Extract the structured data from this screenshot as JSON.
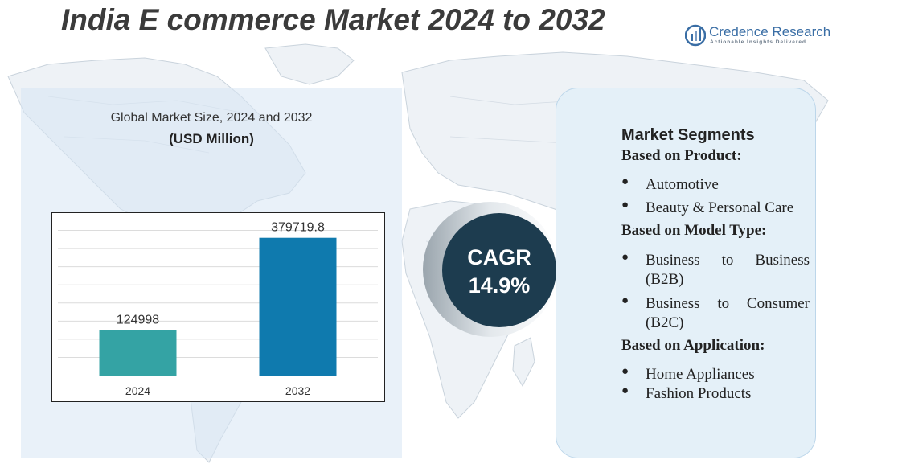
{
  "title": "India E commerce Market 2024 to 2032",
  "logo": {
    "name": "Credence Research",
    "tagline": "Actionable Insights Delivered"
  },
  "chart_title": "Global Market Size, 2024 and 2032",
  "chart_unit": "(USD Million)",
  "chart_data": {
    "type": "bar",
    "categories": [
      "2024",
      "2032"
    ],
    "values": [
      124998,
      379719.8
    ],
    "value_labels": [
      "124998",
      "379719.8"
    ],
    "ylim": [
      0,
      450000
    ],
    "grid": true,
    "colors": [
      "#34a3a4",
      "#0f7aae"
    ]
  },
  "cagr": {
    "label": "CAGR",
    "value": "14.9%",
    "color": "#1d3c4f"
  },
  "segments": {
    "heading": "Market Segments",
    "groups": [
      {
        "title": "Based on Product:",
        "items": [
          "Automotive",
          "Beauty & Personal Care"
        ]
      },
      {
        "title": "Based on Model Type:",
        "items": [
          "Business to Business (B2B)",
          "Business to Consumer (B2C)"
        ]
      },
      {
        "title": "Based on Application:",
        "items": [
          "Home Appliances",
          "Fashion Products"
        ]
      }
    ]
  },
  "colors": {
    "panel": "#e4f0f8",
    "panel_border": "#bcd6ea",
    "title": "#3b3b3b",
    "logo": "#3a6ea5"
  }
}
